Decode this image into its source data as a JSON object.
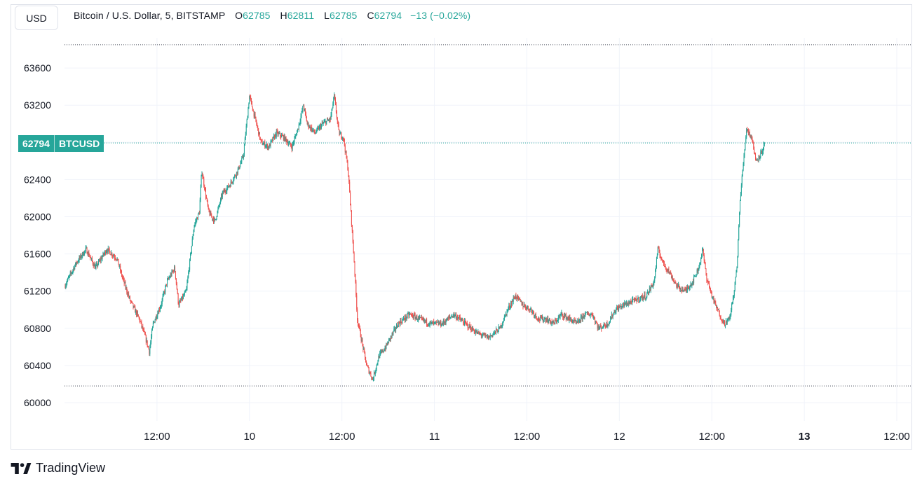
{
  "header": {
    "currency_button": "USD",
    "symbol_title": "Bitcoin / U.S. Dollar, 5, BITSTAMP",
    "open_label": "O",
    "open_value": "62785",
    "high_label": "H",
    "high_value": "62811",
    "low_label": "L",
    "low_value": "62785",
    "close_label": "C",
    "close_value": "62794",
    "change": "−13 (−0.02%)"
  },
  "price_tag": {
    "price": "62794",
    "symbol": "BTCUSD"
  },
  "brand": {
    "name": "TradingView"
  },
  "colors": {
    "up": "#26a69a",
    "down": "#ef5350",
    "grid": "#f0f3fa",
    "text": "#131722"
  },
  "chart_data": {
    "type": "candlestick",
    "title": "Bitcoin / U.S. Dollar, 5, BITSTAMP",
    "interval": "5",
    "ylim": [
      59900,
      63900
    ],
    "y_ticks": [
      60000,
      60400,
      60800,
      61200,
      61600,
      62000,
      62400,
      62800,
      63200,
      63600
    ],
    "x_ticks": [
      "12:00",
      "10",
      "12:00",
      "11",
      "12:00",
      "12",
      "12:00",
      "13",
      "12:00"
    ],
    "x_tick_hours": [
      12,
      24,
      36,
      48,
      60,
      72,
      84,
      96,
      108
    ],
    "x_range_hours": [
      0,
      110
    ],
    "period_high": 63850,
    "period_low": 60180,
    "last_price": 62794,
    "path": [
      [
        0,
        61250
      ],
      [
        1.5,
        61500
      ],
      [
        2.8,
        61650
      ],
      [
        4,
        61450
      ],
      [
        5.5,
        61650
      ],
      [
        6.8,
        61550
      ],
      [
        7.5,
        61350
      ],
      [
        8.5,
        61100
      ],
      [
        9.7,
        60900
      ],
      [
        10.5,
        60700
      ],
      [
        11,
        60550
      ],
      [
        11.5,
        60850
      ],
      [
        12.5,
        61050
      ],
      [
        13.3,
        61300
      ],
      [
        14.3,
        61450
      ],
      [
        14.8,
        61050
      ],
      [
        15.8,
        61200
      ],
      [
        16.8,
        61900
      ],
      [
        17.5,
        62050
      ],
      [
        17.8,
        62500
      ],
      [
        18.3,
        62250
      ],
      [
        18.7,
        62050
      ],
      [
        19.5,
        61950
      ],
      [
        20.5,
        62250
      ],
      [
        21.5,
        62350
      ],
      [
        22.5,
        62500
      ],
      [
        23.2,
        62650
      ],
      [
        24,
        63300
      ],
      [
        24.6,
        63100
      ],
      [
        25.5,
        62800
      ],
      [
        26.5,
        62750
      ],
      [
        27.5,
        62900
      ],
      [
        28.5,
        62850
      ],
      [
        29.5,
        62750
      ],
      [
        30.3,
        62950
      ],
      [
        31,
        63200
      ],
      [
        31.5,
        63000
      ],
      [
        32.5,
        62900
      ],
      [
        33.5,
        63000
      ],
      [
        34.5,
        63050
      ],
      [
        35,
        63300
      ],
      [
        35.6,
        62900
      ],
      [
        36.2,
        62850
      ],
      [
        36.8,
        62500
      ],
      [
        37.2,
        62000
      ],
      [
        37.6,
        61500
      ],
      [
        38,
        60900
      ],
      [
        38.6,
        60650
      ],
      [
        39.2,
        60400
      ],
      [
        40,
        60250
      ],
      [
        40.8,
        60500
      ],
      [
        41.7,
        60600
      ],
      [
        42.3,
        60700
      ],
      [
        43.3,
        60850
      ],
      [
        44.8,
        60950
      ],
      [
        46,
        60900
      ],
      [
        47.5,
        60850
      ],
      [
        49,
        60850
      ],
      [
        50.5,
        60950
      ],
      [
        52,
        60850
      ],
      [
        53.5,
        60750
      ],
      [
        55,
        60700
      ],
      [
        56.5,
        60800
      ],
      [
        57.5,
        61000
      ],
      [
        58.5,
        61150
      ],
      [
        59.5,
        61050
      ],
      [
        60.5,
        61000
      ],
      [
        61.5,
        60900
      ],
      [
        62.5,
        60900
      ],
      [
        63.5,
        60850
      ],
      [
        64.5,
        60950
      ],
      [
        65.5,
        60900
      ],
      [
        66.5,
        60850
      ],
      [
        67.5,
        60950
      ],
      [
        68.5,
        60950
      ],
      [
        69.3,
        60800
      ],
      [
        70.5,
        60850
      ],
      [
        71.5,
        61000
      ],
      [
        72.5,
        61050
      ],
      [
        74,
        61100
      ],
      [
        75.5,
        61150
      ],
      [
        76.5,
        61300
      ],
      [
        77,
        61650
      ],
      [
        77.7,
        61500
      ],
      [
        78.5,
        61400
      ],
      [
        79.5,
        61250
      ],
      [
        80.5,
        61200
      ],
      [
        81.5,
        61300
      ],
      [
        82.3,
        61450
      ],
      [
        82.8,
        61650
      ],
      [
        83.3,
        61350
      ],
      [
        84.2,
        61100
      ],
      [
        85,
        60950
      ],
      [
        85.6,
        60850
      ],
      [
        86.3,
        60900
      ],
      [
        86.9,
        61200
      ],
      [
        87.3,
        61500
      ],
      [
        87.6,
        62100
      ],
      [
        88,
        62500
      ],
      [
        88.5,
        62950
      ],
      [
        89.2,
        62850
      ],
      [
        89.7,
        62600
      ],
      [
        90.5,
        62700
      ],
      [
        90.9,
        62794
      ]
    ]
  }
}
